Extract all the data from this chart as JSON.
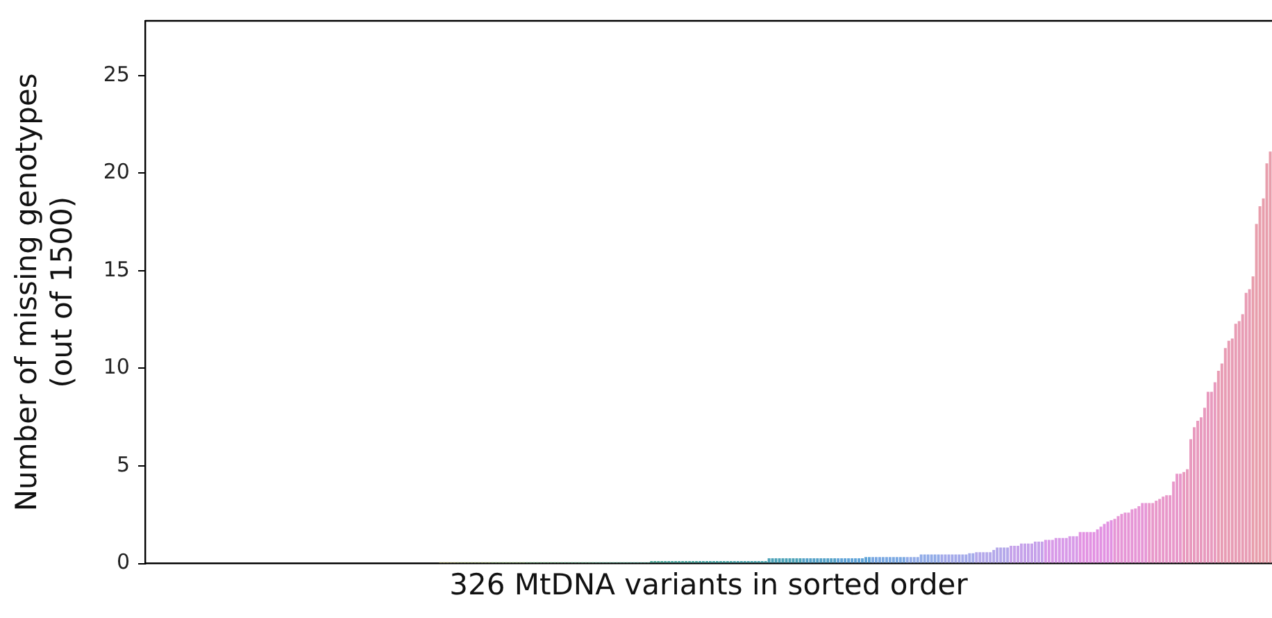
{
  "chart_data": {
    "type": "bar",
    "xlabel": "326 MtDNA variants in sorted order",
    "ylabel": "Number of missing genotypes\n(out of 1500)",
    "ylim": [
      0,
      27.8
    ],
    "yticks": [
      0,
      5,
      10,
      15,
      20,
      25
    ],
    "grid": false,
    "legend": false,
    "tick_labels": "y",
    "categories": [
      null,
      null,
      null,
      null,
      null,
      null,
      null,
      null,
      null,
      null,
      null,
      null,
      null,
      null,
      null,
      null,
      null,
      null,
      null,
      null,
      null,
      null,
      null,
      null,
      null,
      null,
      null,
      null,
      null,
      null,
      null,
      null,
      null,
      null,
      null,
      null,
      null,
      null,
      null,
      null,
      null,
      null,
      null,
      null,
      null,
      null,
      null,
      null,
      null,
      null,
      null,
      null,
      null,
      null,
      null,
      null,
      null,
      null,
      null,
      null,
      null,
      null,
      null,
      null,
      null,
      null,
      null,
      null,
      null,
      null,
      null,
      null,
      null,
      null,
      null,
      null,
      null,
      null,
      null,
      null,
      null,
      null,
      null,
      null,
      null,
      null,
      null,
      null,
      null,
      null,
      null,
      null,
      null,
      null,
      null,
      null,
      null,
      null,
      null,
      null,
      null,
      null,
      null,
      null,
      null,
      null,
      null,
      null,
      null,
      null,
      null,
      null,
      null,
      null,
      null,
      null,
      null,
      null,
      null,
      null,
      null,
      null,
      null,
      null,
      null,
      null,
      null,
      null,
      null,
      null,
      null,
      null,
      null,
      null,
      null,
      null,
      null,
      null,
      null,
      null,
      null,
      null,
      null,
      null,
      null,
      null,
      null,
      null,
      null,
      null,
      null,
      null,
      null,
      null,
      null,
      null,
      null,
      null,
      null,
      null,
      null,
      null,
      null,
      null,
      null,
      null,
      null,
      null,
      null,
      null,
      null,
      null,
      null,
      null,
      null,
      null,
      null,
      null,
      null,
      null,
      null,
      null,
      null,
      null,
      null,
      null,
      null,
      null,
      null,
      null,
      null,
      null,
      null,
      null,
      null,
      null,
      null,
      null,
      null,
      null,
      null,
      null,
      null,
      null,
      null,
      null,
      null,
      null,
      null,
      null,
      null,
      null,
      null,
      null,
      null,
      null,
      null,
      null,
      null,
      null,
      null,
      null,
      null,
      null,
      null,
      null,
      null,
      null,
      null,
      null,
      null,
      null,
      null,
      null,
      null,
      null,
      null,
      null,
      null,
      null,
      null,
      null,
      null,
      null,
      null,
      null,
      null,
      null,
      null,
      null,
      null,
      null,
      null,
      null,
      null,
      null,
      null,
      null,
      null,
      null,
      null,
      null,
      null,
      null,
      null,
      null,
      null,
      null,
      null,
      null,
      null,
      null,
      null,
      null,
      null,
      null,
      null,
      null,
      null,
      null,
      null,
      null,
      null,
      null,
      null,
      null,
      null,
      null,
      null,
      null,
      null,
      null,
      null,
      null,
      null,
      null,
      null,
      null,
      null,
      null,
      null,
      null,
      null,
      null,
      null,
      null,
      null,
      null,
      null,
      null,
      null,
      null,
      null,
      null,
      null,
      null,
      null,
      null,
      null,
      null,
      null,
      null,
      null,
      null,
      null,
      null
    ],
    "values": [
      0,
      0,
      0,
      0,
      0,
      0,
      0,
      0,
      0,
      0,
      0,
      0,
      0,
      0,
      0,
      0,
      0,
      0,
      0,
      0,
      0,
      0,
      0,
      0,
      0,
      0,
      0,
      0,
      0,
      0,
      0,
      0,
      0,
      0,
      0,
      0,
      0,
      0,
      0,
      0,
      0,
      0,
      0,
      0,
      0,
      0,
      0,
      0,
      0,
      0,
      0,
      0,
      0,
      0,
      0,
      0,
      0,
      0,
      0,
      0,
      0,
      0,
      0,
      0,
      0,
      0,
      0,
      0,
      0,
      0,
      0,
      0,
      0,
      0,
      0,
      0,
      0,
      0,
      0,
      0,
      0,
      0,
      0,
      0,
      0,
      0.07,
      0.07,
      0.07,
      0.07,
      0.07,
      0.07,
      0.07,
      0.07,
      0.07,
      0.07,
      0.07,
      0.07,
      0.07,
      0.07,
      0.07,
      0.07,
      0.07,
      0.07,
      0.07,
      0.07,
      0.07,
      0.07,
      0.07,
      0.07,
      0.07,
      0.07,
      0.07,
      0.07,
      0.07,
      0.07,
      0.07,
      0.07,
      0.07,
      0.07,
      0.07,
      0.07,
      0.07,
      0.07,
      0.07,
      0.07,
      0.07,
      0.07,
      0.07,
      0.07,
      0.07,
      0.07,
      0.07,
      0.07,
      0.07,
      0.07,
      0.07,
      0.07,
      0.07,
      0.07,
      0.07,
      0.07,
      0.07,
      0.07,
      0.07,
      0.07,
      0.07,
      0.13,
      0.13,
      0.13,
      0.13,
      0.13,
      0.13,
      0.13,
      0.13,
      0.13,
      0.13,
      0.13,
      0.13,
      0.13,
      0.13,
      0.13,
      0.13,
      0.13,
      0.13,
      0.13,
      0.13,
      0.13,
      0.13,
      0.13,
      0.13,
      0.13,
      0.13,
      0.13,
      0.13,
      0.13,
      0.13,
      0.13,
      0.13,
      0.13,
      0.13,
      0.27,
      0.27,
      0.27,
      0.27,
      0.27,
      0.27,
      0.27,
      0.27,
      0.27,
      0.27,
      0.27,
      0.27,
      0.27,
      0.27,
      0.27,
      0.27,
      0.27,
      0.27,
      0.27,
      0.27,
      0.27,
      0.27,
      0.27,
      0.27,
      0.27,
      0.27,
      0.27,
      0.27,
      0.33,
      0.33,
      0.33,
      0.33,
      0.33,
      0.33,
      0.33,
      0.33,
      0.33,
      0.33,
      0.33,
      0.33,
      0.33,
      0.33,
      0.33,
      0.33,
      0.47,
      0.47,
      0.47,
      0.47,
      0.47,
      0.47,
      0.47,
      0.47,
      0.47,
      0.47,
      0.47,
      0.47,
      0.47,
      0.47,
      0.53,
      0.53,
      0.58,
      0.58,
      0.58,
      0.58,
      0.58,
      0.7,
      0.82,
      0.82,
      0.82,
      0.82,
      0.91,
      0.91,
      0.91,
      1.03,
      1.03,
      1.03,
      1.03,
      1.12,
      1.12,
      1.12,
      1.21,
      1.21,
      1.21,
      1.31,
      1.31,
      1.31,
      1.31,
      1.4,
      1.4,
      1.4,
      1.61,
      1.61,
      1.61,
      1.61,
      1.61,
      1.75,
      1.89,
      2.03,
      2.15,
      2.22,
      2.29,
      2.43,
      2.54,
      2.61,
      2.61,
      2.78,
      2.82,
      2.94,
      3.1,
      3.1,
      3.1,
      3.1,
      3.22,
      3.31,
      3.43,
      3.5,
      3.5,
      4.2,
      4.6,
      4.6,
      4.69,
      4.83,
      6.37,
      6.98,
      7.31,
      7.49,
      7.98,
      8.8,
      8.8,
      9.29,
      9.87,
      10.25,
      11.04,
      11.41,
      11.53,
      12.28,
      12.42,
      12.77,
      13.87,
      14.05,
      14.71,
      17.4,
      18.3,
      18.7,
      20.5,
      21.1
    ],
    "colors": [
      "#e0849a",
      "#e0849a",
      "#e0849a",
      "#e0849a",
      "#e0849a",
      "#e0849a",
      "#e0849a",
      "#e0849a",
      "#e0849a",
      "#e0849a",
      "#e0867f",
      "#e0867f",
      "#e0867f",
      "#e0867f",
      "#e0867f",
      "#e0867f",
      "#e0867f",
      "#e0867f",
      "#e0867f",
      "#e0867f",
      "#d88c6a",
      "#d88c6a",
      "#d88c6a",
      "#d88c6a",
      "#d88c6a",
      "#d88c6a",
      "#d88c6a",
      "#d88c6a",
      "#d88c6a",
      "#d88c6a",
      "#cc9258",
      "#cc9258",
      "#cc9258",
      "#cc9258",
      "#cc9258",
      "#cc9258",
      "#cc9258",
      "#cc9258",
      "#cc9258",
      "#cc9258",
      "#bf974f",
      "#bf974f",
      "#bf974f",
      "#bf974f",
      "#bf974f",
      "#bf974f",
      "#bf974f",
      "#bf974f",
      "#bf974f",
      "#bf974f",
      "#b39b4c",
      "#b39b4c",
      "#b39b4c",
      "#b39b4c",
      "#b39b4c",
      "#b39b4c",
      "#b39b4c",
      "#b39b4c",
      "#b39b4c",
      "#b39b4c",
      "#a89e4c",
      "#a89e4c",
      "#a89e4c",
      "#a89e4c",
      "#a89e4c",
      "#a89e4c",
      "#a89e4c",
      "#a89e4c",
      "#a89e4c",
      "#a89e4c",
      "#9ca14c",
      "#9ca14c",
      "#9ca14c",
      "#9ca14c",
      "#9ca14c",
      "#9ca14c",
      "#9ca14c",
      "#9ca14c",
      "#9ca14c",
      "#9ca14c",
      "#a8a25a",
      "#a8a25a",
      "#a8a25a",
      "#a8a25a",
      "#a8a25a",
      "#a8a25a",
      "#a8a25a",
      "#a8a25a",
      "#a8a25a",
      "#a8a25a",
      "#94a65a",
      "#94a65a",
      "#94a65a",
      "#94a65a",
      "#94a65a",
      "#94a65a",
      "#94a65a",
      "#94a65a",
      "#94a65a",
      "#94a65a",
      "#7aa85c",
      "#7aa85c",
      "#7aa85c",
      "#7aa85c",
      "#7aa85c",
      "#7aa85c",
      "#7aa85c",
      "#7aa85c",
      "#7aa85c",
      "#7aa85c",
      "#5ea96c",
      "#5ea96c",
      "#5ea96c",
      "#5ea96c",
      "#5ea96c",
      "#5ea96c",
      "#5ea96c",
      "#5ea96c",
      "#5ea96c",
      "#5ea96c",
      "#52a97e",
      "#52a97e",
      "#52a97e",
      "#52a97e",
      "#52a97e",
      "#52a97e",
      "#52a97e",
      "#52a97e",
      "#52a97e",
      "#52a97e",
      "#4ea88a",
      "#4ea88a",
      "#4ea88a",
      "#4ea88a",
      "#4ea88a",
      "#4ea88a",
      "#4ea88a",
      "#4ea88a",
      "#4ea88a",
      "#4ea88a",
      "#4aa796",
      "#4aa796",
      "#4aa796",
      "#4aa796",
      "#4aa796",
      "#4aa796",
      "#4aa796",
      "#4aa796",
      "#4aa796",
      "#4aa796",
      "#49a79e",
      "#49a79e",
      "#49a79e",
      "#49a79e",
      "#49a79e",
      "#49a79e",
      "#49a79e",
      "#49a79e",
      "#49a79e",
      "#49a79e",
      "#48a6a6",
      "#48a6a6",
      "#48a6a6",
      "#48a6a6",
      "#48a6a6",
      "#48a6a6",
      "#48a6a6",
      "#48a6a6",
      "#48a6a6",
      "#48a6a6",
      "#4aa5ae",
      "#4aa5ae",
      "#4aa5ae",
      "#4aa5ae",
      "#4aa5ae",
      "#4aa5ae",
      "#4aa5ae",
      "#4aa5ae",
      "#4aa5ae",
      "#4aa5ae",
      "#4da3b8",
      "#4da3b8",
      "#4da3b8",
      "#4da3b8",
      "#4da3b8",
      "#4da3b8",
      "#4da3b8",
      "#4da3b8",
      "#4da3b8",
      "#4da3b8",
      "#55a2c8",
      "#55a2c8",
      "#55a2c8",
      "#55a2c8",
      "#55a2c8",
      "#55a2c8",
      "#55a2c8",
      "#55a2c8",
      "#55a2c8",
      "#55a2c8",
      "#60a4d8",
      "#60a4d8",
      "#60a4d8",
      "#60a4d8",
      "#60a4d8",
      "#60a4d8",
      "#60a4d8",
      "#60a4d8",
      "#60a4d8",
      "#60a4d8",
      "#7aa8e2",
      "#7aa8e2",
      "#7aa8e2",
      "#7aa8e2",
      "#7aa8e2",
      "#7aa8e2",
      "#7aa8e2",
      "#7aa8e2",
      "#7aa8e2",
      "#7aa8e2",
      "#92ace8",
      "#92ace8",
      "#92ace8",
      "#92ace8",
      "#92ace8",
      "#92ace8",
      "#92ace8",
      "#92ace8",
      "#92ace8",
      "#92ace8",
      "#a4aaea",
      "#a4aaea",
      "#a4aaea",
      "#a4aaea",
      "#a4aaea",
      "#a4aaea",
      "#a4aaea",
      "#a4aaea",
      "#a4aaea",
      "#a4aaea",
      "#b4a8ea",
      "#b4a8ea",
      "#b4a8ea",
      "#b4a8ea",
      "#b4a8ea",
      "#b4a8ea",
      "#b4a8ea",
      "#b4a8ea",
      "#b4a8ea",
      "#b4a8ea",
      "#c6a2ea",
      "#c6a2ea",
      "#c6a2ea",
      "#c6a2ea",
      "#c6a2ea",
      "#c6a2ea",
      "#c6a2ea",
      "#c6a2ea",
      "#c6a2ea",
      "#c6a2ea",
      "#d89ae8",
      "#d89ae8",
      "#d89ae8",
      "#d89ae8",
      "#d89ae8",
      "#d89ae8",
      "#d89ae8",
      "#d89ae8",
      "#d89ae8",
      "#d89ae8",
      "#e292e2",
      "#e292e2",
      "#e292e2",
      "#e292e2",
      "#e292e2",
      "#e292e2",
      "#e292e2",
      "#e292e2",
      "#e292e2",
      "#e292e2",
      "#e696d6",
      "#e696d6",
      "#e696d6",
      "#e696d6",
      "#e696d6",
      "#e696d6",
      "#e696d6",
      "#e696d6",
      "#e696d6",
      "#e696d6",
      "#e898ca",
      "#e898ca",
      "#e898ca",
      "#e898ca",
      "#e898ca",
      "#e898ca",
      "#e898ca",
      "#e898ca",
      "#e898ca",
      "#e898ca",
      "#e89abe",
      "#e89abe",
      "#e89abe",
      "#e89abe",
      "#e89abe",
      "#e89abe",
      "#e89abe",
      "#e89abe",
      "#e89abe",
      "#e89abe",
      "#e89cb4",
      "#e89cb4",
      "#e89cb4",
      "#e89cb4",
      "#e89cb4",
      "#e89cb4",
      "#e89cb4",
      "#e89cb4",
      "#e89cb4",
      "#e89cb4",
      "#e89eac",
      "#e89eac",
      "#e89eac",
      "#e89eac",
      "#e89eac",
      "#e89eac"
    ]
  }
}
